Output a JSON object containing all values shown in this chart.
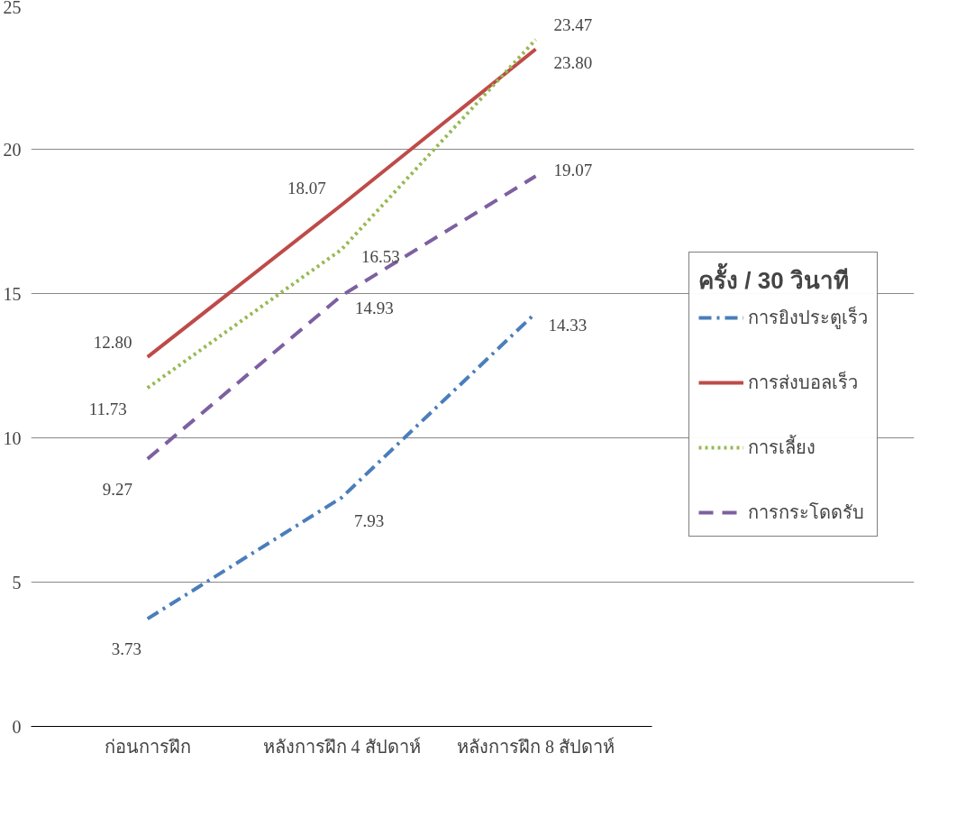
{
  "chart_data": {
    "type": "line",
    "categories": [
      "ก่อนการฝึก",
      "หลังการฝึก 4 สัปดาห์",
      "หลังการฝึก 8 สัปดาห์"
    ],
    "series": [
      {
        "name": "การยิงประตูเร็ว",
        "color": "#4a7ebb",
        "values": [
          3.73,
          7.93,
          14.33
        ],
        "value_labels": [
          "3.73",
          "7.93",
          "14.33"
        ],
        "line_style": "dashdot"
      },
      {
        "name": "การส่งบอลเร็ว",
        "color": "#be4b48",
        "values": [
          12.8,
          18.07,
          23.47
        ],
        "value_labels": [
          "12.80",
          "18.07",
          "23.47"
        ],
        "line_style": "solid"
      },
      {
        "name": "การเลี้ยง",
        "color": "#98b954",
        "values": [
          11.73,
          16.53,
          23.8
        ],
        "value_labels": [
          "11.73",
          "16.53",
          "23.80"
        ],
        "line_style": "dotted"
      },
      {
        "name": "การกระโดดรับ",
        "color": "#7d60a0",
        "values": [
          9.27,
          14.93,
          19.07
        ],
        "value_labels": [
          "9.27",
          "14.93",
          "19.07"
        ],
        "line_style": "dashed"
      }
    ],
    "legend_title": "ครั้ง / 30 วินาที",
    "ylim": [
      0,
      25
    ],
    "yticks": [
      0,
      5,
      10,
      15,
      20,
      25
    ],
    "grid": "y",
    "legend": "right",
    "marker": "none"
  }
}
